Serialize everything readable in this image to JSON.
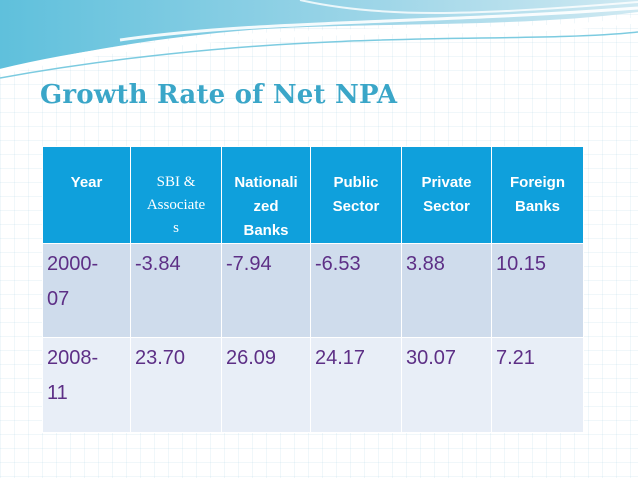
{
  "slide": {
    "title": "Growth Rate of Net NPA"
  },
  "table": {
    "headers": [
      [
        "Year"
      ],
      [
        "SBI &",
        "Associate",
        "s"
      ],
      [
        "Nationali",
        "zed",
        "Banks"
      ],
      [
        "Public",
        "Sector"
      ],
      [
        "Private",
        "Sector"
      ],
      [
        "Foreign",
        "Banks"
      ]
    ],
    "rows": [
      {
        "year": [
          "2000-",
          "07"
        ],
        "values": [
          "-3.84",
          "-7.94",
          "-6.53",
          "3.88",
          "10.15"
        ]
      },
      {
        "year": [
          "2008-",
          "11"
        ],
        "values": [
          "23.70",
          "26.09",
          "24.17",
          "30.07",
          "7.21"
        ]
      }
    ]
  },
  "colors": {
    "title": "#3aa6c8",
    "header_bg": "#0fa0dc",
    "row1_bg": "#cfdcec",
    "row2_bg": "#e8eef7",
    "cell_text": "#5d2f86"
  }
}
